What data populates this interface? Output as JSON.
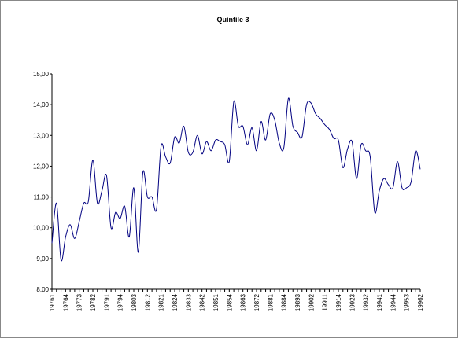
{
  "chart_data": {
    "type": "line",
    "title": "Quintile 3",
    "categories": [
      "19761",
      null,
      null,
      "19764",
      null,
      null,
      "19773",
      null,
      null,
      "19782",
      null,
      null,
      "19791",
      null,
      null,
      "19794",
      null,
      null,
      "19803",
      null,
      null,
      "19812",
      null,
      null,
      "19821",
      null,
      null,
      "19824",
      null,
      null,
      "19833",
      null,
      null,
      "19842",
      null,
      null,
      "19851",
      null,
      null,
      "19854",
      null,
      null,
      "19863",
      null,
      null,
      "19872",
      null,
      null,
      "19881",
      null,
      null,
      "19884",
      null,
      null,
      "19893",
      null,
      null,
      "19902",
      null,
      null,
      "19911",
      null,
      null,
      "19914",
      null,
      null,
      "19923",
      null,
      null,
      "19932",
      null,
      null,
      "19941",
      null,
      null,
      "19944",
      null,
      null,
      "19953",
      null,
      null,
      "19962"
    ],
    "series": [
      {
        "color": "#000080",
        "values": [
          9.5,
          10.8,
          8.95,
          9.7,
          10.1,
          9.65,
          10.2,
          10.8,
          10.85,
          12.2,
          10.8,
          11.2,
          11.7,
          10.0,
          10.5,
          10.3,
          10.7,
          9.7,
          11.3,
          9.2,
          11.8,
          11.0,
          11.0,
          10.6,
          12.65,
          12.3,
          12.1,
          12.95,
          12.75,
          13.3,
          12.45,
          12.45,
          13.0,
          12.4,
          12.8,
          12.5,
          12.85,
          12.8,
          12.7,
          12.15,
          14.1,
          13.3,
          13.3,
          12.7,
          13.25,
          12.5,
          13.45,
          12.85,
          13.7,
          13.5,
          12.75,
          12.6,
          14.2,
          13.3,
          13.1,
          12.95,
          14.0,
          14.05,
          13.7,
          13.55,
          13.35,
          13.2,
          12.9,
          12.85,
          11.95,
          12.55,
          12.8,
          11.6,
          12.7,
          12.5,
          12.3,
          10.5,
          11.2,
          11.6,
          11.4,
          11.3,
          12.15,
          11.3,
          11.3,
          11.5,
          12.5,
          11.9
        ]
      }
    ],
    "ylim": [
      8,
      15
    ],
    "yticks": [
      {
        "value": 8,
        "label": "8,00"
      },
      {
        "value": 9,
        "label": "9,00"
      },
      {
        "value": 10,
        "label": "10,00"
      },
      {
        "value": 11,
        "label": "11,00"
      },
      {
        "value": 12,
        "label": "12,00"
      },
      {
        "value": 13,
        "label": "13,00"
      },
      {
        "value": 14,
        "label": "14,00"
      },
      {
        "value": 15,
        "label": "15,00"
      }
    ],
    "grid": false
  }
}
